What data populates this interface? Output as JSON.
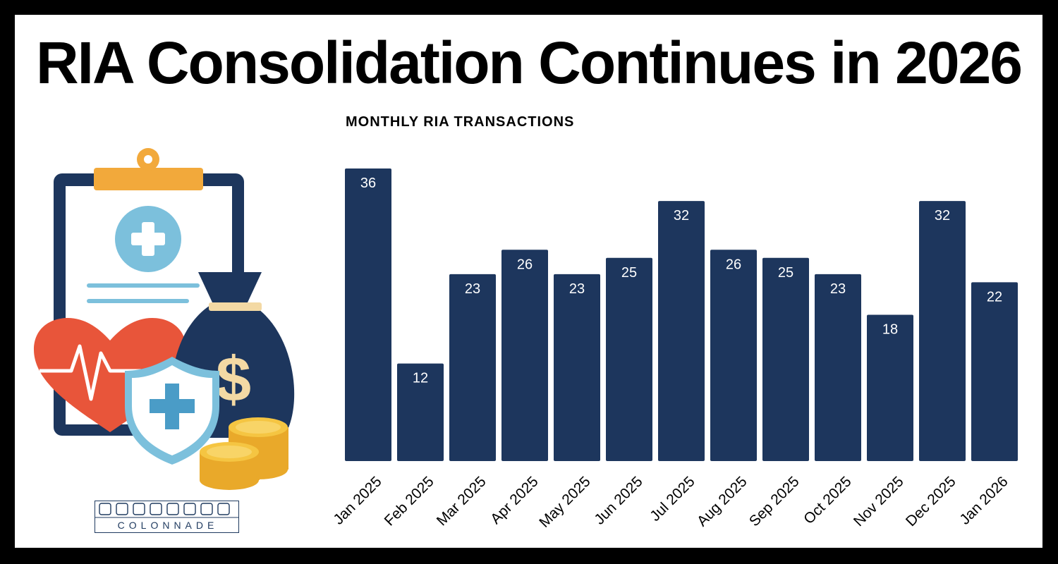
{
  "header": {
    "title": "RIA Consolidation Continues in 2026"
  },
  "brand": {
    "logo_text": "COLONNADE"
  },
  "colors": {
    "bar": "#1d365d",
    "accent_orange": "#f2a93b",
    "heart": "#e8553a",
    "light_blue": "#7cc0dc",
    "coin": "#f5c542"
  },
  "chart_data": {
    "type": "bar",
    "title": "MONTHLY RIA TRANSACTIONS",
    "categories": [
      "Jan 2025",
      "Feb 2025",
      "Mar 2025",
      "Apr 2025",
      "May 2025",
      "Jun 2025",
      "Jul 2025",
      "Aug 2025",
      "Sep 2025",
      "Oct 2025",
      "Nov 2025",
      "Dec 2025",
      "Jan 2026"
    ],
    "values": [
      36,
      12,
      23,
      26,
      23,
      25,
      32,
      26,
      25,
      23,
      18,
      32,
      22
    ],
    "ylim": [
      0,
      36
    ],
    "grid": false,
    "data_labels": true,
    "xlabel": "",
    "ylabel": ""
  }
}
